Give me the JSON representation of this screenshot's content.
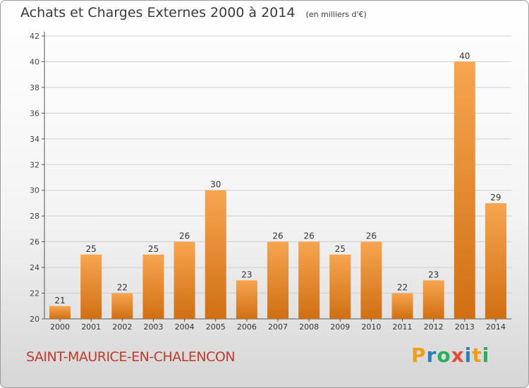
{
  "title": "Achats et Charges Externes 2000 à 2014",
  "unit_note": "(en milliers d'€)",
  "commune": "SAINT-MAURICE-EN-CHALENCON",
  "logo": {
    "letters": [
      "P",
      "r",
      "o",
      "x",
      "i",
      "t",
      "i"
    ],
    "colors": [
      "#f39c12",
      "#2980b9",
      "#27ae60",
      "#e74c3c",
      "#2980b9",
      "#f39c12",
      "#27ae60"
    ]
  },
  "colors": {
    "bar_light": "#f7a550",
    "bar_dark": "#d06f12",
    "axis": "#555555",
    "grid": "#d0d0d0",
    "title": "#3a3a3a",
    "commune": "#c0392b"
  },
  "chart_data": {
    "type": "bar",
    "categories": [
      "2000",
      "2001",
      "2002",
      "2003",
      "2004",
      "2005",
      "2006",
      "2007",
      "2008",
      "2009",
      "2010",
      "2011",
      "2012",
      "2013",
      "2014"
    ],
    "values": [
      21,
      25,
      22,
      25,
      26,
      30,
      23,
      26,
      26,
      25,
      26,
      22,
      23,
      40,
      29
    ],
    "ylim": [
      20,
      42
    ],
    "yticks": [
      20,
      22,
      24,
      26,
      28,
      30,
      32,
      34,
      36,
      38,
      40,
      42
    ],
    "grid": true,
    "xlabel": "",
    "ylabel": ""
  }
}
